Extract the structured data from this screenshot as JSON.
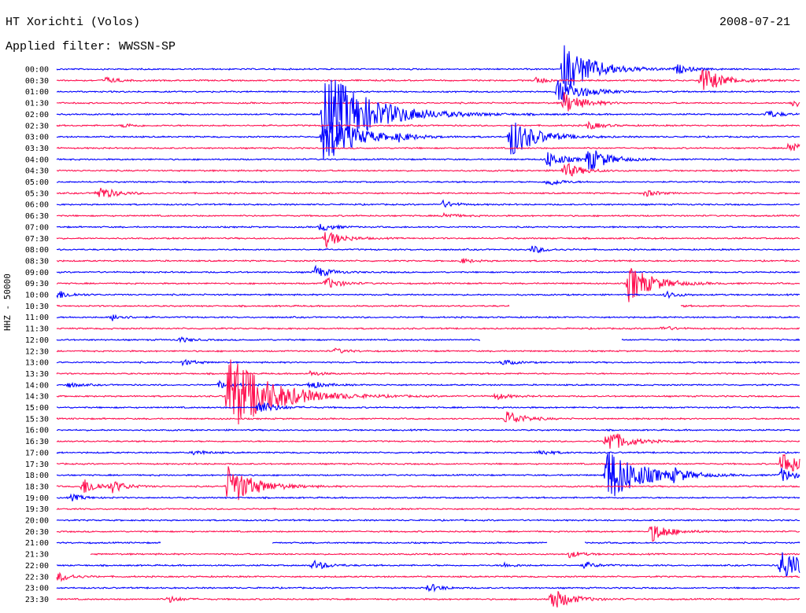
{
  "header": {
    "station": "HT Xorichti (Volos)",
    "filter": "Applied filter: WWSSN-SP",
    "date": "2008-07-21"
  },
  "chart_data": {
    "type": "line",
    "title": "HT Xorichti (Volos)",
    "ylabel": "HHZ - 50000",
    "row_labels": [
      "00:00",
      "00:30",
      "01:00",
      "01:30",
      "02:00",
      "02:30",
      "03:00",
      "03:30",
      "04:00",
      "04:30",
      "05:00",
      "05:30",
      "06:00",
      "06:30",
      "07:00",
      "07:30",
      "08:00",
      "08:30",
      "09:00",
      "09:30",
      "10:00",
      "10:30",
      "11:00",
      "11:30",
      "12:00",
      "12:30",
      "13:00",
      "13:30",
      "14:00",
      "14:30",
      "15:00",
      "15:30",
      "16:00",
      "16:30",
      "17:00",
      "17:30",
      "18:00",
      "18:30",
      "19:00",
      "19:30",
      "20:00",
      "20:30",
      "21:00",
      "21:30",
      "22:00",
      "22:30",
      "23:00",
      "23:30"
    ],
    "colors": {
      "even_rows": "#0000ff",
      "odd_rows": "#ff1050"
    },
    "events": [
      {
        "row": 0,
        "x": 0.682,
        "amp": 3.0
      },
      {
        "row": 0,
        "x": 0.835,
        "amp": 0.5
      },
      {
        "row": 1,
        "x": 0.065,
        "amp": 0.4
      },
      {
        "row": 1,
        "x": 0.868,
        "amp": 1.6
      },
      {
        "row": 1,
        "x": 0.645,
        "amp": 0.4
      },
      {
        "row": 2,
        "x": 0.675,
        "amp": 1.8
      },
      {
        "row": 3,
        "x": 0.683,
        "amp": 1.3
      },
      {
        "row": 3,
        "x": 0.99,
        "amp": 0.5
      },
      {
        "row": 4,
        "x": 0.358,
        "amp": 5.5
      },
      {
        "row": 4,
        "x": 0.955,
        "amp": 0.5
      },
      {
        "row": 5,
        "x": 0.09,
        "amp": 0.25
      },
      {
        "row": 5,
        "x": 0.715,
        "amp": 0.5
      },
      {
        "row": 6,
        "x": 0.358,
        "amp": 3.2
      },
      {
        "row": 6,
        "x": 0.61,
        "amp": 2.4
      },
      {
        "row": 6,
        "x": 0.46,
        "amp": 0.4
      },
      {
        "row": 7,
        "x": 0.985,
        "amp": 0.9
      },
      {
        "row": 8,
        "x": 0.715,
        "amp": 1.5
      },
      {
        "row": 8,
        "x": 0.66,
        "amp": 1.0
      },
      {
        "row": 9,
        "x": 0.683,
        "amp": 1.0
      },
      {
        "row": 10,
        "x": 0.66,
        "amp": 0.5
      },
      {
        "row": 11,
        "x": 0.055,
        "amp": 0.9
      },
      {
        "row": 11,
        "x": 0.792,
        "amp": 0.4
      },
      {
        "row": 12,
        "x": 0.52,
        "amp": 0.4
      },
      {
        "row": 13,
        "x": 0.52,
        "amp": 0.35
      },
      {
        "row": 14,
        "x": 0.355,
        "amp": 0.5
      },
      {
        "row": 15,
        "x": 0.362,
        "amp": 1.0
      },
      {
        "row": 16,
        "x": 0.64,
        "amp": 0.45
      },
      {
        "row": 17,
        "x": 0.545,
        "amp": 0.3
      },
      {
        "row": 18,
        "x": 0.348,
        "amp": 0.7
      },
      {
        "row": 19,
        "x": 0.77,
        "amp": 2.2
      },
      {
        "row": 19,
        "x": 0.362,
        "amp": 0.7
      },
      {
        "row": 20,
        "x": 0.002,
        "amp": 0.5
      },
      {
        "row": 20,
        "x": 0.82,
        "amp": 0.4
      },
      {
        "row": 21,
        "x": 0.81,
        "amp": 0.3
      },
      {
        "row": 22,
        "x": 0.075,
        "amp": 0.4
      },
      {
        "row": 23,
        "x": 0.815,
        "amp": 0.3
      },
      {
        "row": 24,
        "x": 0.165,
        "amp": 0.3
      },
      {
        "row": 25,
        "x": 0.375,
        "amp": 0.3
      },
      {
        "row": 26,
        "x": 0.17,
        "amp": 0.35
      },
      {
        "row": 26,
        "x": 0.6,
        "amp": 0.35
      },
      {
        "row": 27,
        "x": 0.34,
        "amp": 0.3
      },
      {
        "row": 28,
        "x": 0.22,
        "amp": 0.5
      },
      {
        "row": 28,
        "x": 0.34,
        "amp": 0.5
      },
      {
        "row": 28,
        "x": 0.015,
        "amp": 0.3
      },
      {
        "row": 29,
        "x": 0.23,
        "amp": 5.0
      },
      {
        "row": 29,
        "x": 0.59,
        "amp": 0.4
      },
      {
        "row": 30,
        "x": 0.27,
        "amp": 0.9
      },
      {
        "row": 31,
        "x": 0.605,
        "amp": 1.0
      },
      {
        "row": 33,
        "x": 0.74,
        "amp": 1.5
      },
      {
        "row": 34,
        "x": 0.65,
        "amp": 0.35
      },
      {
        "row": 34,
        "x": 0.185,
        "amp": 0.3
      },
      {
        "row": 35,
        "x": 0.975,
        "amp": 1.6
      },
      {
        "row": 36,
        "x": 0.74,
        "amp": 3.5
      },
      {
        "row": 36,
        "x": 0.83,
        "amp": 0.6
      },
      {
        "row": 36,
        "x": 0.975,
        "amp": 0.8
      },
      {
        "row": 37,
        "x": 0.035,
        "amp": 1.0
      },
      {
        "row": 37,
        "x": 0.075,
        "amp": 0.6
      },
      {
        "row": 37,
        "x": 0.23,
        "amp": 2.5
      },
      {
        "row": 38,
        "x": 0.02,
        "amp": 0.4
      },
      {
        "row": 41,
        "x": 0.8,
        "amp": 1.2
      },
      {
        "row": 43,
        "x": 0.69,
        "amp": 0.4
      },
      {
        "row": 44,
        "x": 0.345,
        "amp": 0.6
      },
      {
        "row": 44,
        "x": 0.975,
        "amp": 2.0
      },
      {
        "row": 44,
        "x": 0.71,
        "amp": 0.4
      },
      {
        "row": 44,
        "x": 0.6,
        "amp": 0.3
      },
      {
        "row": 45,
        "x": 0.002,
        "amp": 0.6
      },
      {
        "row": 46,
        "x": 0.5,
        "amp": 0.5
      },
      {
        "row": 47,
        "x": 0.665,
        "amp": 1.4
      },
      {
        "row": 47,
        "x": 0.15,
        "amp": 0.4
      }
    ],
    "gaps": [
      {
        "row": 21,
        "from": 0.61,
        "to": 0.84
      },
      {
        "row": 24,
        "from": 0.57,
        "to": 0.76
      },
      {
        "row": 42,
        "from": 0.14,
        "to": 0.29
      },
      {
        "row": 42,
        "from": 0.66,
        "to": 0.71
      },
      {
        "row": 43,
        "from": 0.0,
        "to": 0.045
      }
    ]
  }
}
